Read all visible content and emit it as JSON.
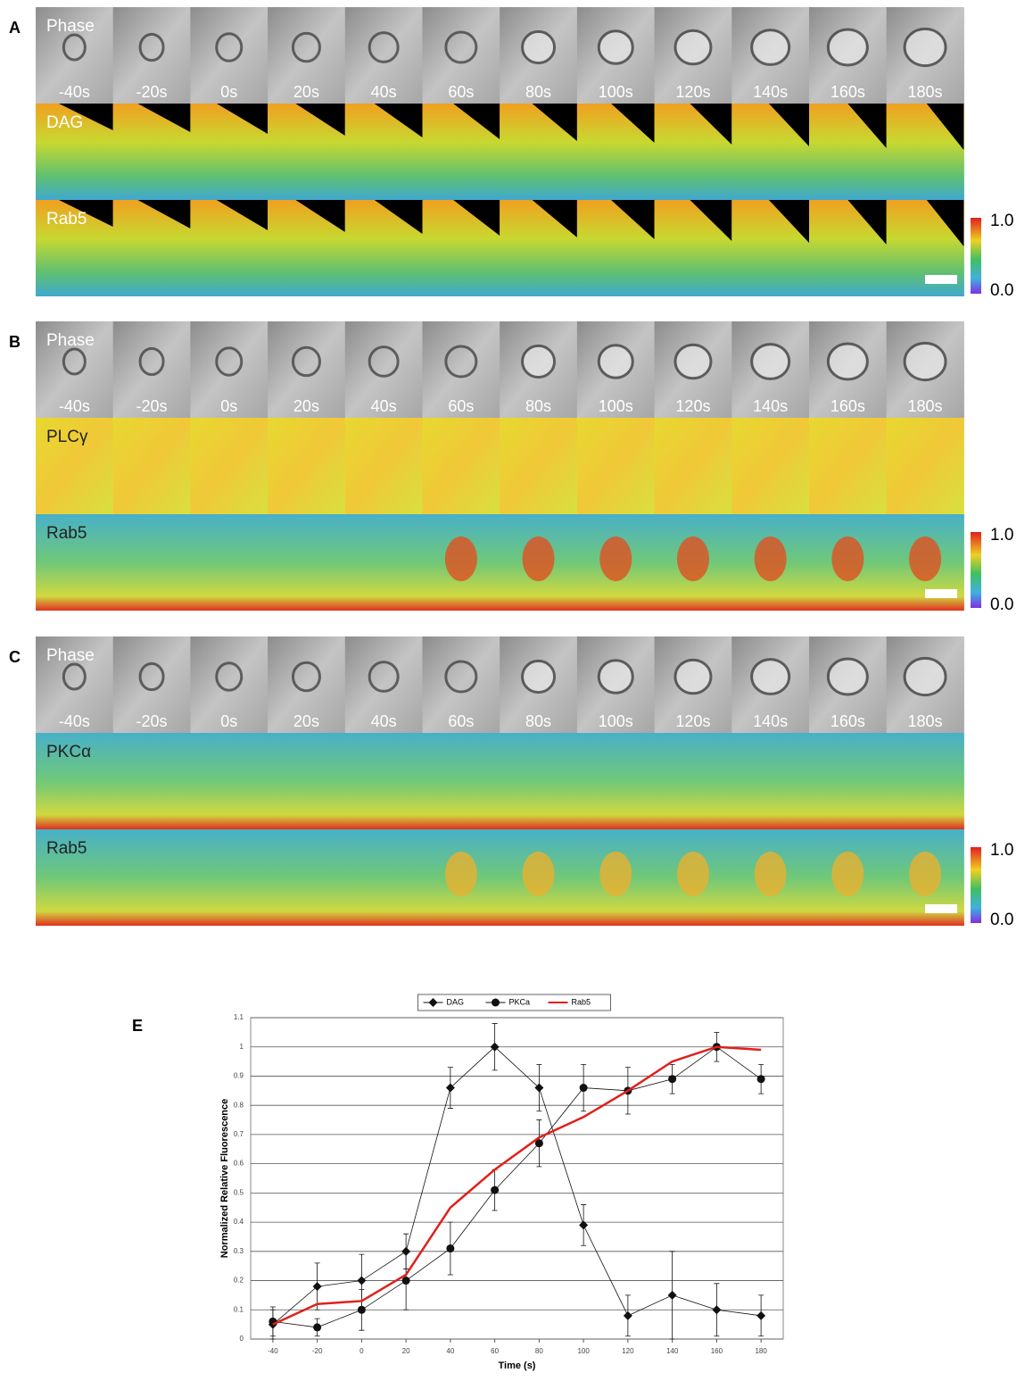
{
  "panels": [
    {
      "label": "A",
      "rows": [
        "Phase",
        "DAG",
        "Rab5"
      ],
      "times": [
        "-40s",
        "-20s",
        "0s",
        "20s",
        "40s",
        "60s",
        "80s",
        "100s",
        "120s",
        "140s",
        "160s",
        "180s"
      ],
      "colorbar": [
        "1.0",
        "0.0"
      ]
    },
    {
      "label": "B",
      "rows": [
        "Phase",
        "PLCγ",
        "Rab5"
      ],
      "times": [
        "-40s",
        "-20s",
        "0s",
        "20s",
        "40s",
        "60s",
        "80s",
        "100s",
        "120s",
        "140s",
        "160s",
        "180s"
      ],
      "colorbar": [
        "1.0",
        "0.0"
      ]
    },
    {
      "label": "C",
      "rows": [
        "Phase",
        "PKCα",
        "Rab5"
      ],
      "times": [
        "-40s",
        "-20s",
        "0s",
        "20s",
        "40s",
        "60s",
        "80s",
        "100s",
        "120s",
        "140s",
        "160s",
        "180s"
      ],
      "colorbar": [
        "1.0",
        "0.0"
      ]
    }
  ],
  "chart_data": {
    "type": "line",
    "label": "E",
    "xlabel": "Time (s)",
    "ylabel": "Normalized Relative Fluorescence",
    "x": [
      -40,
      -20,
      0,
      20,
      40,
      60,
      80,
      100,
      120,
      140,
      160,
      180
    ],
    "series": [
      {
        "name": "DAG",
        "color": "#111111",
        "marker": "diamond",
        "values": [
          0.05,
          0.18,
          0.2,
          0.3,
          0.86,
          1.0,
          0.86,
          0.39,
          0.08,
          0.15,
          0.1,
          0.08
        ],
        "errors": [
          0.05,
          0.08,
          0.09,
          0.06,
          0.07,
          0.08,
          0.08,
          0.07,
          0.07,
          0.15,
          0.09,
          0.07
        ]
      },
      {
        "name": "PKCa",
        "color": "#111111",
        "marker": "circle",
        "values": [
          0.06,
          0.04,
          0.1,
          0.2,
          0.31,
          0.51,
          0.67,
          0.86,
          0.85,
          0.89,
          1.0,
          0.89
        ],
        "errors": [
          0.05,
          0.03,
          0.07,
          0.1,
          0.09,
          0.07,
          0.08,
          0.08,
          0.08,
          0.05,
          0.05,
          0.05
        ]
      },
      {
        "name": "Rab5",
        "color": "#e0201b",
        "values": [
          0.05,
          0.12,
          0.13,
          0.22,
          0.45,
          0.58,
          0.69,
          0.76,
          0.85,
          0.95,
          1.0,
          0.99
        ]
      }
    ],
    "xlim": [
      -50,
      190
    ],
    "ylim": [
      0,
      1.1
    ],
    "xticks": [
      -40,
      -20,
      0,
      20,
      40,
      60,
      80,
      100,
      120,
      140,
      160,
      180
    ],
    "yticks": [
      0,
      0.1,
      0.2,
      0.3,
      0.4,
      0.5,
      0.6,
      0.7,
      0.8,
      0.9,
      1,
      1.1
    ],
    "grid": true,
    "legend": "top"
  }
}
